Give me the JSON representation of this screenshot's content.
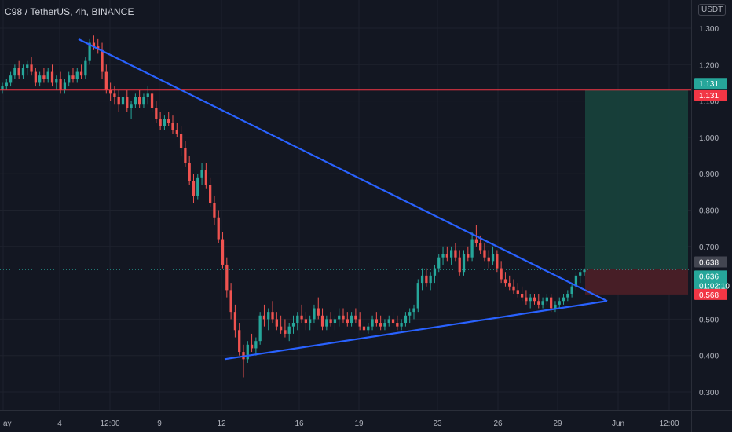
{
  "header": {
    "symbol": "C98 / TetherUS, 4h, BINANCE",
    "currency": "USDT"
  },
  "colors": {
    "background": "#131722",
    "grid": "#1e222d",
    "up": "#26a69a",
    "down": "#ef5350",
    "trendline": "#2962ff",
    "resistance": "#f23645",
    "profit_zone": "#17403b",
    "loss_zone": "#4a1f27"
  },
  "chart_data": {
    "type": "candlestick",
    "ylim": [
      0.26,
      1.33
    ],
    "y_ticks": [
      "1.300",
      "1.200",
      "1.100",
      "1.000",
      "0.900",
      "0.800",
      "0.700",
      "0.500",
      "0.400",
      "0.300"
    ],
    "x_ticks": [
      "ay",
      "4",
      "12:00",
      "9",
      "12",
      "16",
      "19",
      "23",
      "26",
      "29",
      "Jun",
      "12:00"
    ],
    "resistance_level": 1.131,
    "price_tags": [
      {
        "label": "1.131",
        "value": 1.131,
        "color": "#26a69a"
      },
      {
        "label": "1.131",
        "value": 1.131,
        "color": "#f23645"
      },
      {
        "label": "0.638",
        "value": 0.638,
        "color": "#434651"
      },
      {
        "label": "0.636",
        "value": 0.636,
        "color": "#26a69a",
        "sub": "01:02:10"
      },
      {
        "label": "0.568",
        "value": 0.568,
        "color": "#f23645"
      }
    ],
    "position": {
      "entry": 0.638,
      "target": 1.131,
      "stop": 0.568
    },
    "candles": [
      [
        1.13,
        1.15,
        1.12,
        1.14
      ],
      [
        1.14,
        1.16,
        1.13,
        1.15
      ],
      [
        1.15,
        1.18,
        1.14,
        1.17
      ],
      [
        1.17,
        1.2,
        1.16,
        1.19
      ],
      [
        1.19,
        1.21,
        1.16,
        1.17
      ],
      [
        1.17,
        1.2,
        1.16,
        1.19
      ],
      [
        1.19,
        1.21,
        1.17,
        1.2
      ],
      [
        1.2,
        1.22,
        1.17,
        1.18
      ],
      [
        1.18,
        1.19,
        1.14,
        1.15
      ],
      [
        1.15,
        1.18,
        1.14,
        1.17
      ],
      [
        1.17,
        1.19,
        1.15,
        1.16
      ],
      [
        1.16,
        1.19,
        1.15,
        1.18
      ],
      [
        1.18,
        1.2,
        1.14,
        1.15
      ],
      [
        1.15,
        1.17,
        1.13,
        1.16
      ],
      [
        1.16,
        1.18,
        1.12,
        1.13
      ],
      [
        1.13,
        1.16,
        1.12,
        1.15
      ],
      [
        1.15,
        1.18,
        1.14,
        1.17
      ],
      [
        1.17,
        1.19,
        1.15,
        1.16
      ],
      [
        1.16,
        1.19,
        1.15,
        1.18
      ],
      [
        1.18,
        1.2,
        1.16,
        1.17
      ],
      [
        1.17,
        1.22,
        1.16,
        1.21
      ],
      [
        1.21,
        1.27,
        1.2,
        1.26
      ],
      [
        1.26,
        1.28,
        1.24,
        1.25
      ],
      [
        1.25,
        1.27,
        1.23,
        1.24
      ],
      [
        1.24,
        1.26,
        1.16,
        1.18
      ],
      [
        1.18,
        1.2,
        1.12,
        1.13
      ],
      [
        1.13,
        1.15,
        1.1,
        1.12
      ],
      [
        1.12,
        1.14,
        1.09,
        1.11
      ],
      [
        1.11,
        1.13,
        1.07,
        1.09
      ],
      [
        1.09,
        1.12,
        1.08,
        1.11
      ],
      [
        1.11,
        1.13,
        1.07,
        1.08
      ],
      [
        1.08,
        1.1,
        1.05,
        1.09
      ],
      [
        1.09,
        1.12,
        1.08,
        1.11
      ],
      [
        1.11,
        1.13,
        1.08,
        1.09
      ],
      [
        1.09,
        1.12,
        1.08,
        1.11
      ],
      [
        1.11,
        1.14,
        1.09,
        1.12
      ],
      [
        1.12,
        1.13,
        1.07,
        1.08
      ],
      [
        1.08,
        1.1,
        1.04,
        1.05
      ],
      [
        1.05,
        1.07,
        1.02,
        1.03
      ],
      [
        1.03,
        1.06,
        1.02,
        1.05
      ],
      [
        1.05,
        1.07,
        1.03,
        1.04
      ],
      [
        1.04,
        1.06,
        1.01,
        1.02
      ],
      [
        1.02,
        1.04,
        1.0,
        1.01
      ],
      [
        1.01,
        1.03,
        0.95,
        0.97
      ],
      [
        0.97,
        0.99,
        0.92,
        0.93
      ],
      [
        0.93,
        0.95,
        0.87,
        0.88
      ],
      [
        0.88,
        0.9,
        0.82,
        0.84
      ],
      [
        0.84,
        0.9,
        0.83,
        0.89
      ],
      [
        0.89,
        0.93,
        0.87,
        0.91
      ],
      [
        0.91,
        0.93,
        0.86,
        0.87
      ],
      [
        0.87,
        0.89,
        0.81,
        0.82
      ],
      [
        0.82,
        0.84,
        0.76,
        0.78
      ],
      [
        0.78,
        0.8,
        0.71,
        0.72
      ],
      [
        0.72,
        0.74,
        0.64,
        0.65
      ],
      [
        0.65,
        0.67,
        0.56,
        0.58
      ],
      [
        0.58,
        0.6,
        0.5,
        0.52
      ],
      [
        0.52,
        0.54,
        0.45,
        0.47
      ],
      [
        0.47,
        0.49,
        0.4,
        0.41
      ],
      [
        0.41,
        0.43,
        0.34,
        0.39
      ],
      [
        0.39,
        0.44,
        0.38,
        0.43
      ],
      [
        0.43,
        0.46,
        0.41,
        0.42
      ],
      [
        0.42,
        0.45,
        0.4,
        0.44
      ],
      [
        0.44,
        0.52,
        0.43,
        0.51
      ],
      [
        0.51,
        0.54,
        0.48,
        0.5
      ],
      [
        0.5,
        0.53,
        0.47,
        0.52
      ],
      [
        0.52,
        0.55,
        0.49,
        0.5
      ],
      [
        0.5,
        0.52,
        0.47,
        0.48
      ],
      [
        0.48,
        0.51,
        0.46,
        0.47
      ],
      [
        0.47,
        0.5,
        0.45,
        0.46
      ],
      [
        0.46,
        0.49,
        0.44,
        0.48
      ],
      [
        0.48,
        0.51,
        0.46,
        0.49
      ],
      [
        0.49,
        0.52,
        0.47,
        0.51
      ],
      [
        0.51,
        0.54,
        0.49,
        0.5
      ],
      [
        0.5,
        0.52,
        0.47,
        0.49
      ],
      [
        0.49,
        0.51,
        0.47,
        0.5
      ],
      [
        0.5,
        0.54,
        0.49,
        0.53
      ],
      [
        0.53,
        0.56,
        0.5,
        0.51
      ],
      [
        0.51,
        0.53,
        0.47,
        0.48
      ],
      [
        0.48,
        0.51,
        0.47,
        0.5
      ],
      [
        0.5,
        0.52,
        0.48,
        0.49
      ],
      [
        0.49,
        0.51,
        0.47,
        0.5
      ],
      [
        0.5,
        0.53,
        0.48,
        0.51
      ],
      [
        0.51,
        0.53,
        0.49,
        0.5
      ],
      [
        0.5,
        0.52,
        0.48,
        0.49
      ],
      [
        0.49,
        0.52,
        0.48,
        0.51
      ],
      [
        0.51,
        0.53,
        0.49,
        0.5
      ],
      [
        0.5,
        0.52,
        0.47,
        0.48
      ],
      [
        0.48,
        0.5,
        0.46,
        0.47
      ],
      [
        0.47,
        0.49,
        0.46,
        0.48
      ],
      [
        0.48,
        0.51,
        0.47,
        0.5
      ],
      [
        0.5,
        0.52,
        0.48,
        0.49
      ],
      [
        0.49,
        0.51,
        0.47,
        0.48
      ],
      [
        0.48,
        0.5,
        0.47,
        0.49
      ],
      [
        0.49,
        0.51,
        0.48,
        0.5
      ],
      [
        0.5,
        0.52,
        0.48,
        0.49
      ],
      [
        0.49,
        0.51,
        0.47,
        0.48
      ],
      [
        0.48,
        0.5,
        0.47,
        0.49
      ],
      [
        0.49,
        0.52,
        0.48,
        0.51
      ],
      [
        0.51,
        0.53,
        0.49,
        0.52
      ],
      [
        0.52,
        0.54,
        0.5,
        0.53
      ],
      [
        0.53,
        0.61,
        0.52,
        0.6
      ],
      [
        0.6,
        0.64,
        0.58,
        0.62
      ],
      [
        0.62,
        0.64,
        0.59,
        0.6
      ],
      [
        0.6,
        0.63,
        0.58,
        0.62
      ],
      [
        0.62,
        0.65,
        0.6,
        0.64
      ],
      [
        0.64,
        0.68,
        0.63,
        0.67
      ],
      [
        0.67,
        0.7,
        0.65,
        0.68
      ],
      [
        0.68,
        0.7,
        0.66,
        0.67
      ],
      [
        0.67,
        0.7,
        0.65,
        0.69
      ],
      [
        0.69,
        0.71,
        0.66,
        0.67
      ],
      [
        0.67,
        0.69,
        0.62,
        0.63
      ],
      [
        0.63,
        0.69,
        0.62,
        0.68
      ],
      [
        0.68,
        0.7,
        0.66,
        0.67
      ],
      [
        0.67,
        0.74,
        0.66,
        0.72
      ],
      [
        0.72,
        0.76,
        0.7,
        0.71
      ],
      [
        0.71,
        0.73,
        0.68,
        0.69
      ],
      [
        0.69,
        0.71,
        0.66,
        0.67
      ],
      [
        0.67,
        0.69,
        0.64,
        0.66
      ],
      [
        0.66,
        0.7,
        0.65,
        0.68
      ],
      [
        0.68,
        0.69,
        0.63,
        0.64
      ],
      [
        0.64,
        0.66,
        0.6,
        0.61
      ],
      [
        0.61,
        0.63,
        0.59,
        0.6
      ],
      [
        0.6,
        0.62,
        0.58,
        0.59
      ],
      [
        0.59,
        0.61,
        0.57,
        0.58
      ],
      [
        0.58,
        0.6,
        0.56,
        0.57
      ],
      [
        0.57,
        0.59,
        0.55,
        0.56
      ],
      [
        0.56,
        0.58,
        0.54,
        0.55
      ],
      [
        0.55,
        0.57,
        0.53,
        0.56
      ],
      [
        0.56,
        0.57,
        0.54,
        0.55
      ],
      [
        0.55,
        0.57,
        0.53,
        0.54
      ],
      [
        0.54,
        0.56,
        0.53,
        0.55
      ],
      [
        0.55,
        0.57,
        0.54,
        0.56
      ],
      [
        0.56,
        0.57,
        0.52,
        0.53
      ],
      [
        0.53,
        0.55,
        0.52,
        0.54
      ],
      [
        0.54,
        0.56,
        0.53,
        0.55
      ],
      [
        0.55,
        0.57,
        0.54,
        0.56
      ],
      [
        0.56,
        0.58,
        0.55,
        0.57
      ],
      [
        0.57,
        0.6,
        0.56,
        0.59
      ],
      [
        0.59,
        0.63,
        0.58,
        0.62
      ],
      [
        0.62,
        0.64,
        0.6,
        0.63
      ],
      [
        0.63,
        0.64,
        0.62,
        0.636
      ]
    ],
    "trendlines": [
      {
        "from": [
          0,
          1.27
        ],
        "to": [
          1,
          0.55
        ]
      },
      {
        "from": [
          0,
          0.39
        ],
        "to": [
          1,
          0.55
        ]
      }
    ]
  }
}
